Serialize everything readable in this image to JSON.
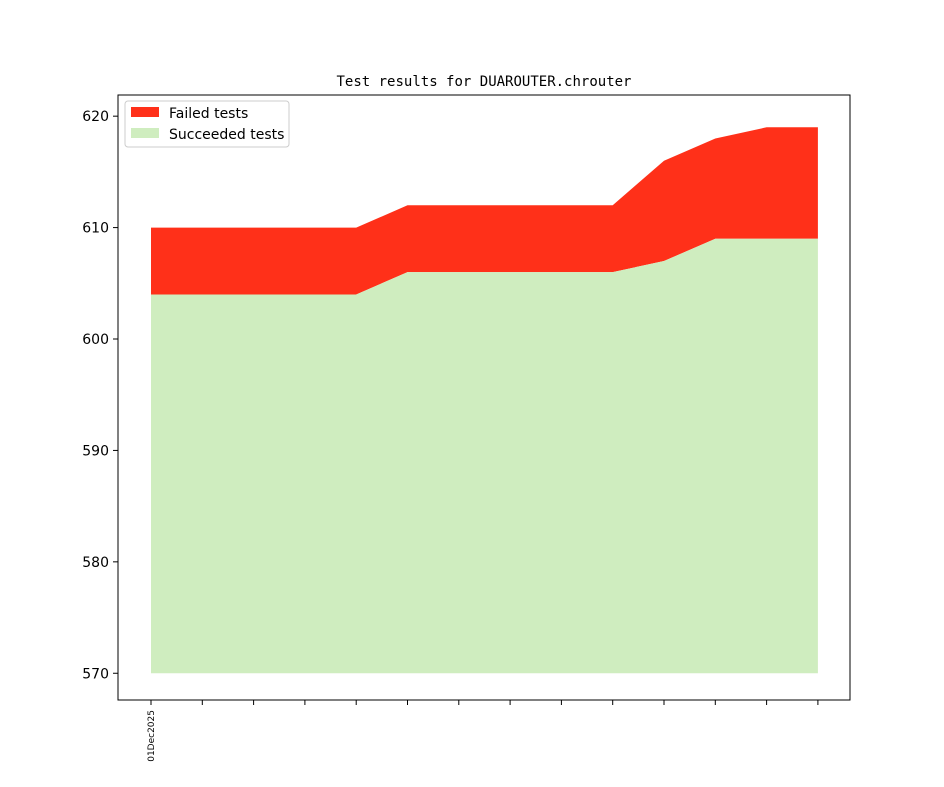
{
  "chart_data": {
    "type": "area",
    "title": "Test results for DUAROUTER.chrouter",
    "xlabel": "",
    "ylabel": "",
    "ylim": [
      567.6,
      621.9
    ],
    "yticks": [
      570,
      580,
      590,
      600,
      610,
      620
    ],
    "x_tick_labels": [
      "01Dec2025",
      "",
      "",
      "",
      "",
      "",
      "",
      "",
      "",
      "",
      "",
      "",
      "",
      ""
    ],
    "x": [
      0,
      1,
      2,
      3,
      4,
      5,
      6,
      7,
      8,
      9,
      10,
      11,
      12,
      13
    ],
    "baseline": 570,
    "legend_position": "upper-left",
    "series": [
      {
        "name": "Failed tests",
        "color": "#ff3019",
        "total": [
          610,
          610,
          610,
          610,
          610,
          612,
          612,
          612,
          612,
          612,
          616,
          618,
          619,
          619
        ]
      },
      {
        "name": "Succeeded tests",
        "color": "#cfedbf",
        "values": [
          604,
          604,
          604,
          604,
          604,
          606,
          606,
          606,
          606,
          606,
          607,
          609,
          609,
          609
        ]
      }
    ]
  }
}
